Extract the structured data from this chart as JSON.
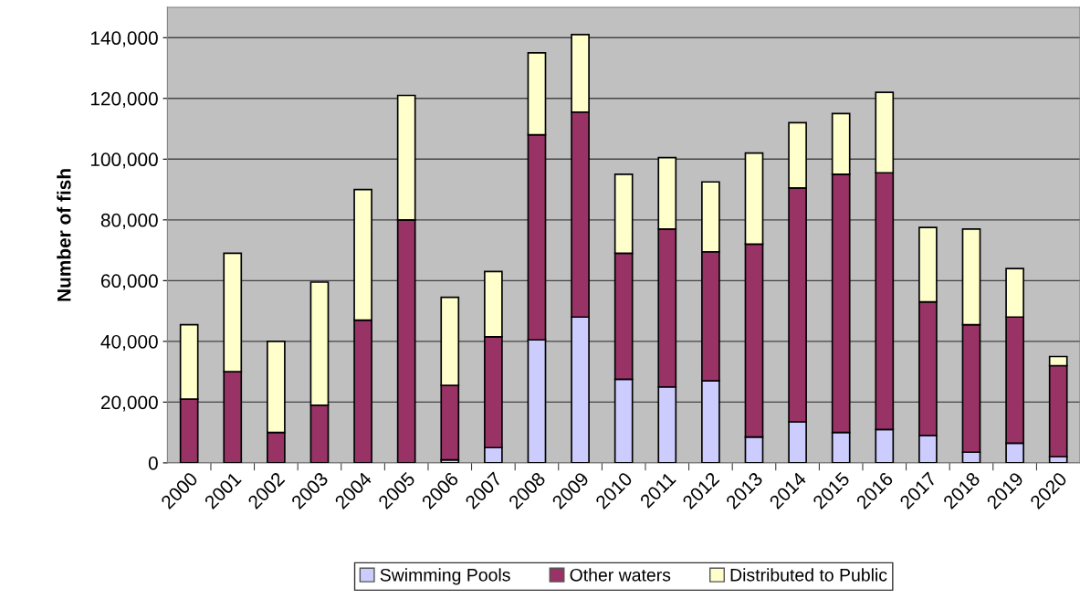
{
  "chart_data": {
    "type": "bar",
    "stacked": true,
    "ylabel": "Number of fish",
    "categories": [
      "2000",
      "2001",
      "2002",
      "2003",
      "2004",
      "2005",
      "2006",
      "2007",
      "2008",
      "2009",
      "2010",
      "2011",
      "2012",
      "2013",
      "2014",
      "2015",
      "2016",
      "2017",
      "2018",
      "2019",
      "2020"
    ],
    "series": [
      {
        "name": "Swimming Pools",
        "color": "#ccccff",
        "values": [
          0,
          0,
          0,
          0,
          0,
          0,
          1000,
          5000,
          40500,
          48000,
          27500,
          25000,
          27000,
          8500,
          13500,
          10000,
          11000,
          9000,
          3500,
          6500,
          2000
        ]
      },
      {
        "name": "Other waters",
        "color": "#993366",
        "values": [
          21000,
          30000,
          10000,
          19000,
          47000,
          80000,
          24500,
          36500,
          67500,
          67500,
          41500,
          52000,
          42500,
          63500,
          77000,
          85000,
          84500,
          44000,
          42000,
          41500,
          30000
        ]
      },
      {
        "name": "Distributed to Public",
        "color": "#ffffcc",
        "values": [
          24500,
          39000,
          30000,
          40500,
          43000,
          41000,
          29000,
          21500,
          27000,
          25500,
          26000,
          23500,
          23000,
          30000,
          21500,
          20000,
          26500,
          24500,
          31500,
          16000,
          3000
        ]
      }
    ],
    "ylim": [
      0,
      150000
    ],
    "yticks": [
      {
        "value": 0,
        "label": "0"
      },
      {
        "value": 20000,
        "label": "20,000"
      },
      {
        "value": 40000,
        "label": "40,000"
      },
      {
        "value": 60000,
        "label": "60,000"
      },
      {
        "value": 80000,
        "label": "80,000"
      },
      {
        "value": 100000,
        "label": "100,000"
      },
      {
        "value": 120000,
        "label": "120,000"
      },
      {
        "value": 140000,
        "label": "140,000"
      }
    ],
    "grid": "y",
    "legend": "bottom"
  }
}
